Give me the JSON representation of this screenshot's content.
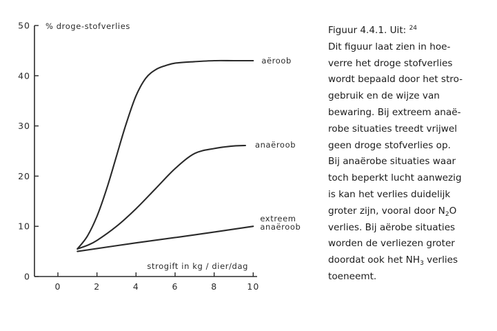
{
  "chart_data": {
    "type": "line",
    "ylabel": "% droge-stofverlies",
    "xlabel": "strogift in kg / dier/dag",
    "x_ticks": [
      "0",
      "2",
      "4",
      "6",
      "8",
      "10"
    ],
    "y_ticks": [
      "0",
      "10",
      "20",
      "30",
      "40",
      "50"
    ],
    "xlim": [
      -1.2,
      10.2
    ],
    "ylim": [
      0,
      50
    ],
    "grid": false,
    "series": [
      {
        "name": "aëroob",
        "label_lines": [
          "aëroob"
        ],
        "x": [
          1,
          1.5,
          2,
          2.5,
          3,
          3.5,
          4,
          4.5,
          5,
          5.5,
          6,
          7,
          8,
          9,
          10
        ],
        "y": [
          5.5,
          8,
          12,
          17.5,
          24,
          30.5,
          36,
          39.5,
          41.2,
          42,
          42.5,
          42.8,
          43,
          43,
          43
        ]
      },
      {
        "name": "anaëroob",
        "label_lines": [
          "anaëroob"
        ],
        "x": [
          1,
          1.5,
          2,
          3,
          4,
          5,
          6,
          7,
          8,
          9,
          9.6
        ],
        "y": [
          5.5,
          6.2,
          7.2,
          10,
          13.5,
          17.5,
          21.5,
          24.5,
          25.5,
          26,
          26.1
        ]
      },
      {
        "name": "extreem anaëroob",
        "label_lines": [
          "extreem",
          "anaëroob"
        ],
        "x": [
          1,
          4,
          7,
          10
        ],
        "y": [
          5,
          6.7,
          8.3,
          10
        ]
      }
    ]
  },
  "caption": {
    "title": "Figuur 4.4.1. Uit:",
    "title_ref": "24",
    "lines": [
      [
        "Dit figuur laat zien in hoe-"
      ],
      [
        "verre het droge stofverlies"
      ],
      [
        "wordt bepaald door het stro-"
      ],
      [
        "gebruik en de wijze van"
      ],
      [
        "bewaring. Bij extreem anaë-"
      ],
      [
        "robe situaties treedt vrijwel"
      ],
      [
        "geen droge stofverlies op."
      ],
      [
        "Bij anaërobe situaties waar"
      ],
      [
        "toch beperkt lucht aanwezig"
      ],
      [
        "is kan het verlies duidelijk"
      ],
      [
        "groter zijn, vooral door N",
        {
          "sub": "2"
        },
        "O"
      ],
      [
        "verlies. Bij aërobe situaties"
      ],
      [
        "worden de verliezen groter"
      ],
      [
        "doordat ook het NH",
        {
          "sub": "3"
        },
        " verlies"
      ],
      [
        "toeneemt."
      ]
    ]
  }
}
